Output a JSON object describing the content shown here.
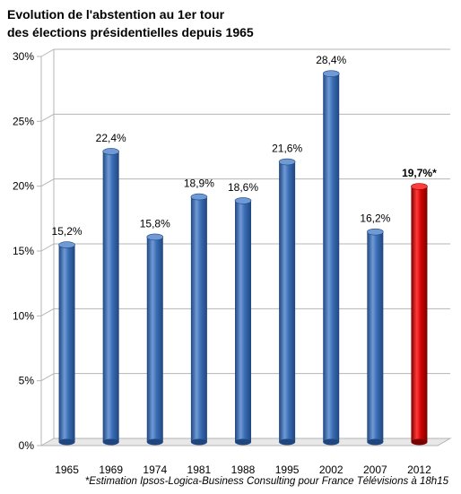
{
  "chart_data": {
    "type": "bar",
    "title_line1": "Evolution de l'abstention au 1er tour",
    "title_line2": "des élections présidentielles depuis 1965",
    "categories": [
      "1965",
      "1969",
      "1974",
      "1981",
      "1988",
      "1995",
      "2002",
      "2007",
      "2012"
    ],
    "values": [
      15.2,
      22.4,
      15.8,
      18.9,
      18.6,
      21.6,
      28.4,
      16.2,
      19.7
    ],
    "data_labels": [
      "15,2%",
      "22,4%",
      "15,8%",
      "18,9%",
      "18,6%",
      "21,6%",
      "28,4%",
      "16,2%",
      "19,7%*"
    ],
    "highlight_index": 8,
    "ylim": [
      0,
      30
    ],
    "yticks": [
      0,
      5,
      10,
      15,
      20,
      25,
      30
    ],
    "ytick_labels": [
      "0%",
      "5%",
      "10%",
      "15%",
      "20%",
      "25%",
      "30%"
    ],
    "xlabel": "",
    "ylabel": "",
    "grid": true,
    "colors": {
      "bar": "#3a6db5",
      "bar_dark": "#1f467f",
      "bar_light": "#6f9ad6",
      "highlight": "#d00000",
      "highlight_dark": "#7a0000",
      "highlight_light": "#ff3b3b",
      "grid": "#b5b5b5",
      "floor": "#e8e8e8"
    }
  },
  "footnote": "*Estimation Ipsos-Logica-Business Consulting pour France Télévisions à 18h15"
}
